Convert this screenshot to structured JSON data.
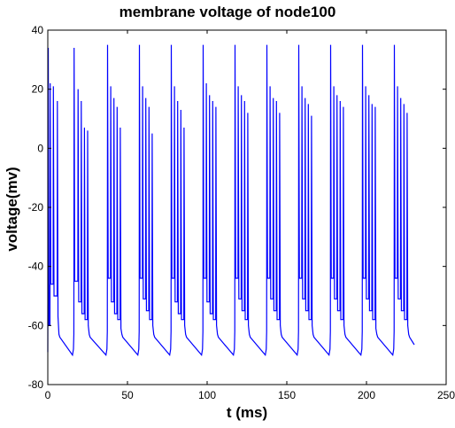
{
  "chart_data": {
    "type": "line",
    "title": "membrane voltage of node100",
    "xlabel": "t (ms)",
    "ylabel": "voltage(mv)",
    "xlim": [
      0,
      250
    ],
    "ylim": [
      -80,
      40
    ],
    "xticks": [
      0,
      50,
      100,
      150,
      200,
      250
    ],
    "yticks": [
      40,
      20,
      0,
      -20,
      -40,
      -60,
      -80
    ],
    "grid": false,
    "line_color": "#0000ff",
    "baseline": {
      "start_value": -69,
      "post_burst_value": -64,
      "trough_value": -70,
      "end_value": -66.5,
      "t_end": 230
    },
    "bursts": [
      {
        "spike_times": [
          0.3,
          1.5,
          3.5,
          6.0
        ],
        "peaks": [
          34,
          22,
          21,
          16
        ],
        "troughs": [
          -60,
          -46,
          -50,
          -57
        ]
      },
      {
        "spike_times": [
          16.5,
          19.0,
          21.0,
          23.0,
          25.0
        ],
        "peaks": [
          34,
          20,
          16,
          7,
          6
        ],
        "troughs": [
          -45,
          -52,
          -56,
          -58,
          -60
        ]
      },
      {
        "spike_times": [
          37.5,
          39.5,
          41.5,
          43.5,
          45.5
        ],
        "peaks": [
          35,
          21,
          17,
          14,
          7
        ],
        "troughs": [
          -44,
          -52,
          -56,
          -58,
          -61
        ]
      },
      {
        "spike_times": [
          57.5,
          59.5,
          61.5,
          63.5,
          65.5
        ],
        "peaks": [
          35,
          21,
          17,
          14,
          5
        ],
        "troughs": [
          -44,
          -51,
          -55,
          -58,
          -60
        ]
      },
      {
        "spike_times": [
          77.5,
          79.5,
          81.5,
          83.5,
          85.5
        ],
        "peaks": [
          35,
          21,
          16,
          13,
          7
        ],
        "troughs": [
          -44,
          -52,
          -56,
          -58,
          -60
        ]
      },
      {
        "spike_times": [
          97.5,
          99.5,
          101.5,
          103.5,
          105.5
        ],
        "peaks": [
          35,
          22,
          18,
          16,
          14
        ],
        "troughs": [
          -44,
          -52,
          -56,
          -58,
          -60
        ]
      },
      {
        "spike_times": [
          117.5,
          119.5,
          121.5,
          123.5,
          125.5
        ],
        "peaks": [
          35,
          21,
          18,
          16,
          12
        ],
        "troughs": [
          -44,
          -51,
          -55,
          -58,
          -60
        ]
      },
      {
        "spike_times": [
          137.5,
          139.5,
          141.5,
          143.5,
          145.5
        ],
        "peaks": [
          35,
          21,
          17,
          16,
          12
        ],
        "troughs": [
          -44,
          -51,
          -55,
          -58,
          -60
        ]
      },
      {
        "spike_times": [
          157.5,
          159.5,
          161.5,
          163.5,
          165.5
        ],
        "peaks": [
          35,
          21,
          17,
          15,
          11
        ],
        "troughs": [
          -44,
          -51,
          -55,
          -58,
          -60
        ]
      },
      {
        "spike_times": [
          177.5,
          179.5,
          181.5,
          183.5,
          185.5
        ],
        "peaks": [
          35,
          21,
          18,
          16,
          14
        ],
        "troughs": [
          -44,
          -51,
          -55,
          -58,
          -60
        ]
      },
      {
        "spike_times": [
          197.5,
          199.5,
          201.5,
          203.5,
          205.5
        ],
        "peaks": [
          35,
          21,
          18,
          15,
          14
        ],
        "troughs": [
          -44,
          -51,
          -55,
          -58,
          -61
        ]
      },
      {
        "spike_times": [
          217.5,
          219.5,
          221.5,
          223.5,
          225.5
        ],
        "peaks": [
          35,
          21,
          17,
          15,
          12
        ],
        "troughs": [
          -44,
          -51,
          -55,
          -58,
          -60
        ]
      }
    ]
  }
}
